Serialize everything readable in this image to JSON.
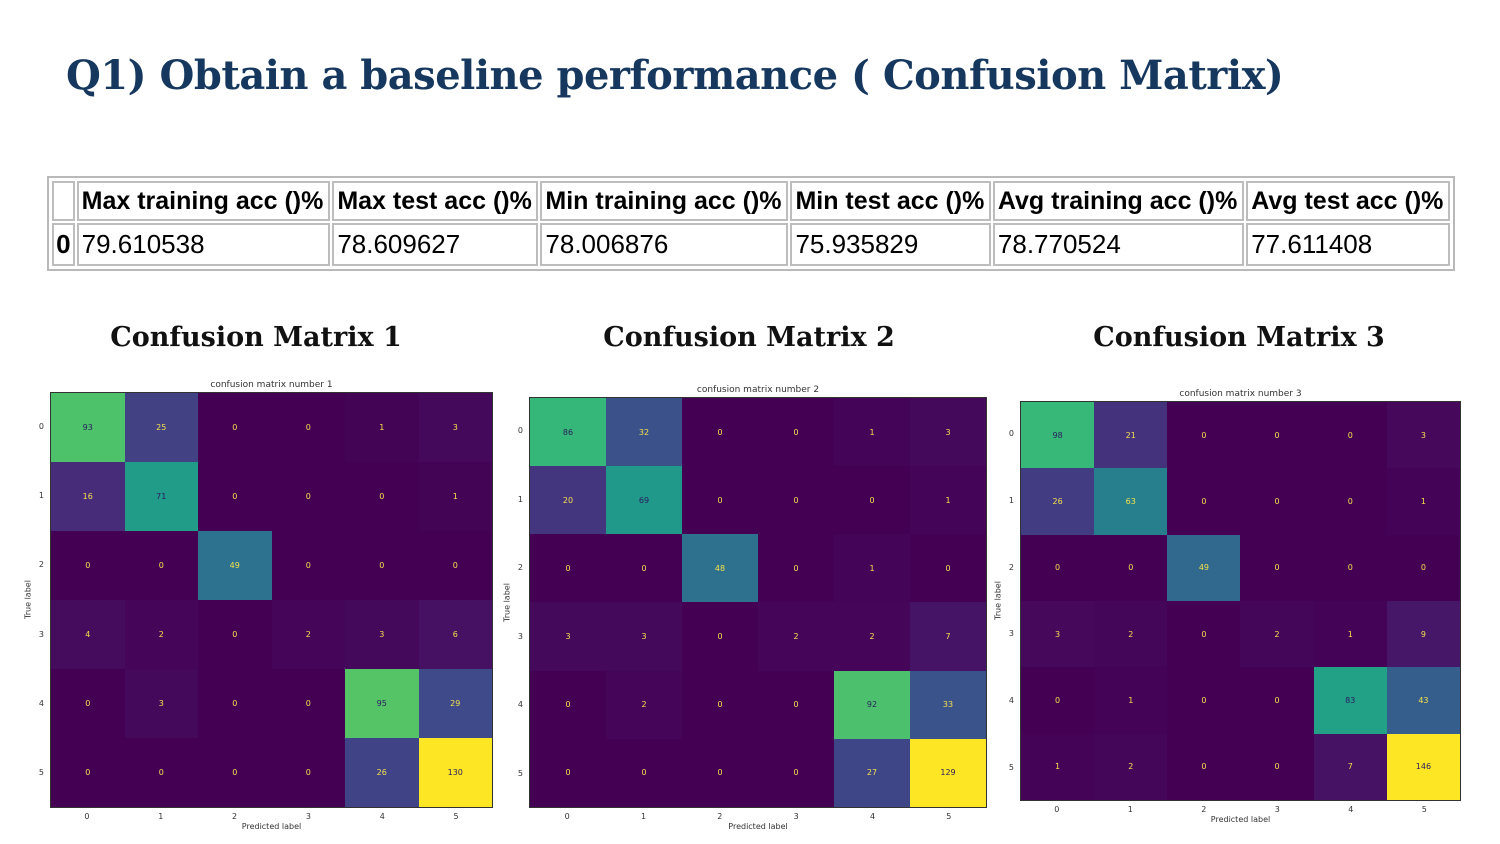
{
  "slide": {
    "title": "Q1) Obtain a baseline performance ( Confusion Matrix)"
  },
  "accuracy_table": {
    "headers": [
      "",
      "Max training acc ()%",
      "Max test acc ()%",
      "Min training acc ()%",
      "Min test acc ()%",
      "Avg training acc ()%",
      "Avg test acc ()%"
    ],
    "rows": [
      [
        "0",
        "79.610538",
        "78.609627",
        "78.006876",
        "75.935829",
        "78.770524",
        "77.611408"
      ]
    ]
  },
  "matrices": [
    {
      "heading": "Confusion Matrix 1",
      "plot_title": "confusion matrix number 1",
      "xlabel": "Predicted label",
      "ylabel": "True label",
      "labels": [
        "0",
        "1",
        "2",
        "3",
        "4",
        "5"
      ],
      "values": [
        [
          93,
          25,
          0,
          0,
          1,
          3
        ],
        [
          16,
          71,
          0,
          0,
          0,
          1
        ],
        [
          0,
          0,
          49,
          0,
          0,
          0
        ],
        [
          4,
          2,
          0,
          2,
          3,
          6
        ],
        [
          0,
          3,
          0,
          0,
          95,
          29
        ],
        [
          0,
          0,
          0,
          0,
          26,
          130
        ]
      ]
    },
    {
      "heading": "Confusion Matrix 2",
      "plot_title": "confusion matrix number 2",
      "xlabel": "Predicted label",
      "ylabel": "True label",
      "labels": [
        "0",
        "1",
        "2",
        "3",
        "4",
        "5"
      ],
      "values": [
        [
          86,
          32,
          0,
          0,
          1,
          3
        ],
        [
          20,
          69,
          0,
          0,
          0,
          1
        ],
        [
          0,
          0,
          48,
          0,
          1,
          0
        ],
        [
          3,
          3,
          0,
          2,
          2,
          7
        ],
        [
          0,
          2,
          0,
          0,
          92,
          33
        ],
        [
          0,
          0,
          0,
          0,
          27,
          129
        ]
      ]
    },
    {
      "heading": "Confusion Matrix 3",
      "plot_title": "confusion matrix number 3",
      "xlabel": "Predicted label",
      "ylabel": "True label",
      "labels": [
        "0",
        "1",
        "2",
        "3",
        "4",
        "5"
      ],
      "values": [
        [
          98,
          21,
          0,
          0,
          0,
          3
        ],
        [
          26,
          63,
          0,
          0,
          0,
          1
        ],
        [
          0,
          0,
          49,
          0,
          0,
          0
        ],
        [
          3,
          2,
          0,
          2,
          1,
          9
        ],
        [
          0,
          1,
          0,
          0,
          83,
          43
        ],
        [
          1,
          2,
          0,
          0,
          7,
          146
        ]
      ]
    }
  ],
  "chart_data": [
    {
      "type": "heatmap",
      "title": "confusion matrix number 1",
      "xlabel": "Predicted label",
      "ylabel": "True label",
      "x": [
        "0",
        "1",
        "2",
        "3",
        "4",
        "5"
      ],
      "y": [
        "0",
        "1",
        "2",
        "3",
        "4",
        "5"
      ],
      "colormap": "viridis",
      "values": [
        [
          93,
          25,
          0,
          0,
          1,
          3
        ],
        [
          16,
          71,
          0,
          0,
          0,
          1
        ],
        [
          0,
          0,
          49,
          0,
          0,
          0
        ],
        [
          4,
          2,
          0,
          2,
          3,
          6
        ],
        [
          0,
          3,
          0,
          0,
          95,
          29
        ],
        [
          0,
          0,
          0,
          0,
          26,
          130
        ]
      ]
    },
    {
      "type": "heatmap",
      "title": "confusion matrix number 2",
      "xlabel": "Predicted label",
      "ylabel": "True label",
      "x": [
        "0",
        "1",
        "2",
        "3",
        "4",
        "5"
      ],
      "y": [
        "0",
        "1",
        "2",
        "3",
        "4",
        "5"
      ],
      "colormap": "viridis",
      "values": [
        [
          86,
          32,
          0,
          0,
          1,
          3
        ],
        [
          20,
          69,
          0,
          0,
          0,
          1
        ],
        [
          0,
          0,
          48,
          0,
          1,
          0
        ],
        [
          3,
          3,
          0,
          2,
          2,
          7
        ],
        [
          0,
          2,
          0,
          0,
          92,
          33
        ],
        [
          0,
          0,
          0,
          0,
          27,
          129
        ]
      ]
    },
    {
      "type": "heatmap",
      "title": "confusion matrix number 3",
      "xlabel": "Predicted label",
      "ylabel": "True label",
      "x": [
        "0",
        "1",
        "2",
        "3",
        "4",
        "5"
      ],
      "y": [
        "0",
        "1",
        "2",
        "3",
        "4",
        "5"
      ],
      "colormap": "viridis",
      "values": [
        [
          98,
          21,
          0,
          0,
          0,
          3
        ],
        [
          26,
          63,
          0,
          0,
          0,
          1
        ],
        [
          0,
          0,
          49,
          0,
          0,
          0
        ],
        [
          3,
          2,
          0,
          2,
          1,
          9
        ],
        [
          0,
          1,
          0,
          0,
          83,
          43
        ],
        [
          1,
          2,
          0,
          0,
          7,
          146
        ]
      ]
    }
  ]
}
